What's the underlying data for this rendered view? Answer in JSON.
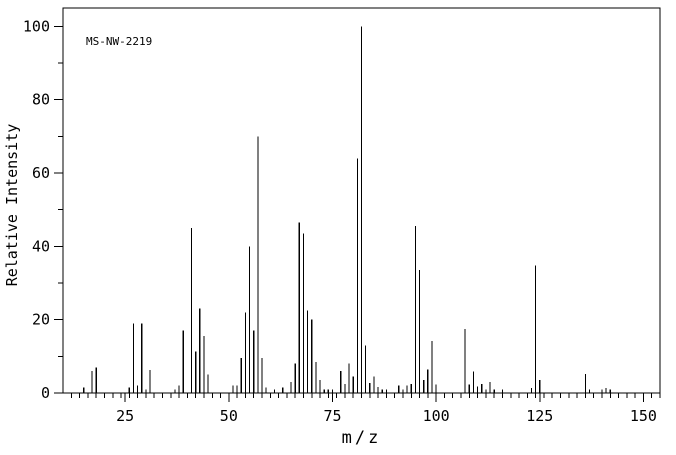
{
  "figure": {
    "annotation": "MS-NW-2219",
    "xlabel": "m/z",
    "ylabel": "Relative Intensity"
  },
  "chart_data": {
    "type": "bar",
    "subtype": "mass-spectrum-stick-plot",
    "title": "MS-NW-2219",
    "xlabel": "m/z",
    "ylabel": "Relative Intensity",
    "xlim": [
      10,
      154
    ],
    "ylim": [
      0,
      105
    ],
    "x_major_ticks": [
      25,
      50,
      75,
      100,
      125,
      150
    ],
    "x_minor_tick_start": 12,
    "x_minor_tick_step": 2,
    "y_major_ticks": [
      0,
      20,
      40,
      60,
      80,
      100
    ],
    "y_minor_tick_step": 10,
    "grid": false,
    "legend": "none",
    "bar_color": "#000000",
    "frame_color": "#000000",
    "background": "#ffffff",
    "peaks": [
      [
        15,
        1.5
      ],
      [
        17,
        6
      ],
      [
        18,
        7
      ],
      [
        26,
        1.5
      ],
      [
        27,
        19
      ],
      [
        28,
        2
      ],
      [
        29,
        19
      ],
      [
        30,
        1
      ],
      [
        31,
        6.3
      ],
      [
        37,
        1
      ],
      [
        38,
        2
      ],
      [
        39,
        17
      ],
      [
        41,
        45
      ],
      [
        42,
        11.3
      ],
      [
        43,
        23
      ],
      [
        44,
        15.5
      ],
      [
        45,
        5
      ],
      [
        51,
        2
      ],
      [
        52,
        2
      ],
      [
        53,
        9.5
      ],
      [
        54,
        22
      ],
      [
        55,
        40
      ],
      [
        56,
        17
      ],
      [
        57,
        70
      ],
      [
        58,
        9.5
      ],
      [
        59,
        1.5
      ],
      [
        61,
        1
      ],
      [
        63,
        1.5
      ],
      [
        65,
        3
      ],
      [
        66,
        8
      ],
      [
        67,
        46.5
      ],
      [
        68,
        43.5
      ],
      [
        69,
        22.5
      ],
      [
        70,
        20
      ],
      [
        71,
        8.5
      ],
      [
        72,
        3.5
      ],
      [
        73,
        1
      ],
      [
        74,
        1
      ],
      [
        75,
        1
      ],
      [
        77,
        6
      ],
      [
        78,
        2.5
      ],
      [
        79,
        8
      ],
      [
        80,
        4.5
      ],
      [
        81,
        64
      ],
      [
        82,
        100
      ],
      [
        83,
        13
      ],
      [
        84,
        2.7
      ],
      [
        85,
        4.5
      ],
      [
        86,
        1.7
      ],
      [
        87,
        1
      ],
      [
        88,
        1
      ],
      [
        91,
        2
      ],
      [
        92,
        1
      ],
      [
        93,
        2
      ],
      [
        94,
        2.5
      ],
      [
        95,
        45.5
      ],
      [
        96,
        33.5
      ],
      [
        97,
        3.5
      ],
      [
        98,
        6.4
      ],
      [
        99,
        14.2
      ],
      [
        100,
        2.3
      ],
      [
        107,
        17.5
      ],
      [
        108,
        2.3
      ],
      [
        109,
        5.8
      ],
      [
        110,
        1.8
      ],
      [
        111,
        2.5
      ],
      [
        112,
        1
      ],
      [
        113,
        3
      ],
      [
        114,
        1
      ],
      [
        116,
        1
      ],
      [
        123,
        1.4
      ],
      [
        124,
        34.8
      ],
      [
        125,
        3.6
      ],
      [
        136,
        5.2
      ],
      [
        137,
        1
      ],
      [
        140,
        1
      ],
      [
        141,
        1.3
      ],
      [
        142,
        1
      ]
    ]
  }
}
